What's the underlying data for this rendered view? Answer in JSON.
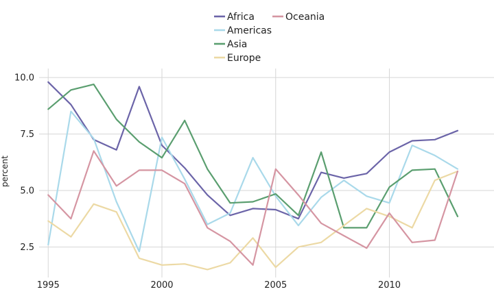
{
  "chart_data": {
    "type": "line",
    "title": "",
    "xlabel": "",
    "ylabel": "percent",
    "xlim": [
      1994.6,
      2014.6
    ],
    "ylim": [
      1.3,
      10.4
    ],
    "x": [
      1995,
      1996,
      1997,
      1998,
      1999,
      2000,
      2001,
      2002,
      2003,
      2004,
      2005,
      2006,
      2007,
      2008,
      2009,
      2010,
      2011,
      2012,
      2013
    ],
    "x_ticks": [
      {
        "value": 1995,
        "label": "1995"
      },
      {
        "value": 2000,
        "label": "2000"
      },
      {
        "value": 2005,
        "label": "2005"
      },
      {
        "value": 2010,
        "label": "2010"
      }
    ],
    "y_ticks": [
      {
        "value": 2.5,
        "label": "2.5"
      },
      {
        "value": 5.0,
        "label": "5.0"
      },
      {
        "value": 7.5,
        "label": "7.5"
      },
      {
        "value": 10.0,
        "label": "10.0"
      }
    ],
    "grid": true,
    "legend_position": "top-center",
    "series": [
      {
        "name": "Africa",
        "color": "#6b64a8",
        "values": [
          9.8,
          8.8,
          7.25,
          6.8,
          9.6,
          7.0,
          6.0,
          4.8,
          3.9,
          4.2,
          4.15,
          3.75,
          5.8,
          5.55,
          5.75,
          6.7,
          7.2,
          7.25,
          7.65
        ]
      },
      {
        "name": "Americas",
        "color": "#a9d9ea",
        "values": [
          2.6,
          8.5,
          7.3,
          4.5,
          2.3,
          7.35,
          5.5,
          3.5,
          4.0,
          6.45,
          4.75,
          3.45,
          4.7,
          5.45,
          4.75,
          4.45,
          7.0,
          6.55,
          5.95
        ]
      },
      {
        "name": "Asia",
        "color": "#5a9e6f",
        "values": [
          8.6,
          9.45,
          9.7,
          8.15,
          7.15,
          6.45,
          8.1,
          5.95,
          4.45,
          4.5,
          4.85,
          3.9,
          6.7,
          3.35,
          3.35,
          5.15,
          5.9,
          5.95,
          3.85
        ]
      },
      {
        "name": "Europe",
        "color": "#ecd9a4",
        "values": [
          3.65,
          2.95,
          4.4,
          4.05,
          2.0,
          1.7,
          1.75,
          1.5,
          1.8,
          2.9,
          1.6,
          2.5,
          2.7,
          3.45,
          4.2,
          3.85,
          3.35,
          5.45,
          5.85
        ]
      },
      {
        "name": "Oceania",
        "color": "#d595a2",
        "values": [
          4.8,
          3.75,
          6.75,
          5.2,
          5.9,
          5.9,
          5.3,
          3.35,
          2.75,
          1.7,
          5.95,
          4.8,
          3.55,
          3.0,
          2.45,
          4.0,
          2.7,
          2.8,
          5.85
        ]
      }
    ]
  }
}
